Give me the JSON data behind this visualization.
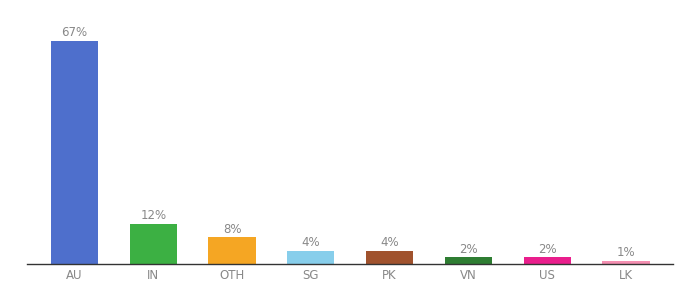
{
  "categories": [
    "AU",
    "IN",
    "OTH",
    "SG",
    "PK",
    "VN",
    "US",
    "LK"
  ],
  "values": [
    67,
    12,
    8,
    4,
    4,
    2,
    2,
    1
  ],
  "labels": [
    "67%",
    "12%",
    "8%",
    "4%",
    "4%",
    "2%",
    "2%",
    "1%"
  ],
  "bar_colors": [
    "#4e6fcc",
    "#3cb043",
    "#f5a623",
    "#87ceeb",
    "#a0522d",
    "#2e7d32",
    "#e91e8c",
    "#f48fb1"
  ],
  "background_color": "#ffffff",
  "ylim": [
    0,
    72
  ],
  "label_fontsize": 8.5,
  "tick_fontsize": 8.5,
  "label_color": "#888888",
  "tick_color": "#888888"
}
